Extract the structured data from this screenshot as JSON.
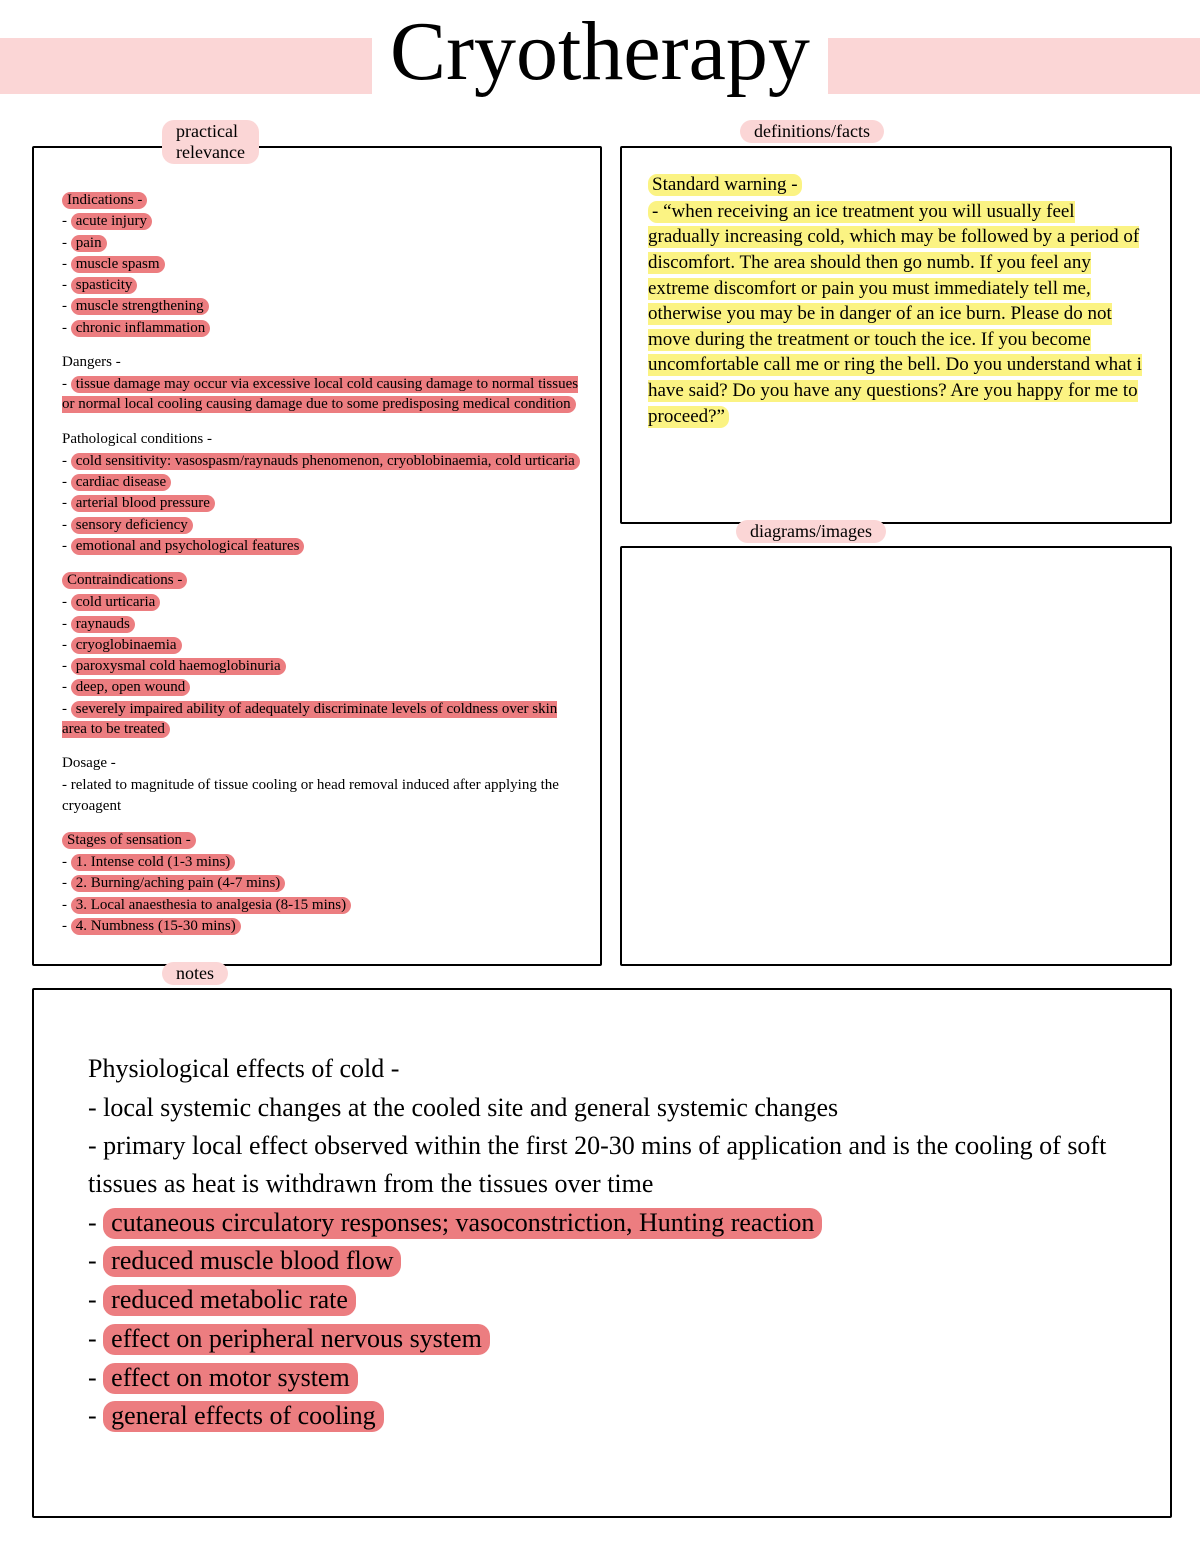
{
  "colors": {
    "pink_band": "#fbd6d6",
    "pink_hl": "#ec7d80",
    "yellow_hl": "#fbf383",
    "border": "#000000",
    "bg": "#ffffff"
  },
  "title": "Cryotherapy",
  "labels": {
    "practical": "practical relevance",
    "defs": "definitions/facts",
    "diagrams": "diagrams/images",
    "notes": "notes"
  },
  "practical": {
    "indications_head": "Indications -",
    "indications": [
      "acute injury",
      "pain",
      "muscle spasm",
      "spasticity",
      "muscle strengthening",
      "chronic inflammation"
    ],
    "dangers_head": "Dangers -",
    "dangers_text": "tissue damage may occur via excessive local cold causing damage to normal tissues or normal local cooling causing damage due to some predisposing medical condition",
    "path_head": "Pathological conditions -",
    "path": [
      "cold sensitivity: vasospasm/raynauds phenomenon, cryoblobinaemia, cold urticaria",
      "cardiac disease",
      "arterial blood pressure",
      "sensory deficiency",
      "emotional and psychological features"
    ],
    "contra_head": "Contraindications -",
    "contra": [
      "cold urticaria",
      "raynauds",
      "cryoglobinaemia",
      "paroxysmal cold haemoglobinuria",
      "deep, open wound",
      "severely impaired ability of adequately discriminate levels of coldness over skin area to be treated"
    ],
    "dosage_head": "Dosage -",
    "dosage_text": "- related to magnitude of tissue cooling or head removal induced after applying the cryoagent",
    "stages_head": "Stages of sensation -",
    "stages": [
      "1. Intense cold (1-3 mins)",
      "2. Burning/aching pain (4-7 mins)",
      "3. Local anaesthesia to analgesia (8-15 mins)",
      "4. Numbness (15-30 mins)"
    ]
  },
  "defs": {
    "head": "Standard warning -",
    "body": "- “when receiving an ice treatment you will usually feel gradually increasing cold, which may be followed by a period of discomfort. The area should then go numb. If you feel any extreme discomfort or pain you must immediately tell me, otherwise you may be in danger of an ice burn. Please do not move during the treatment or touch the ice. If you become uncomfortable call me or ring the bell. Do you understand what i have said? Do you have any questions? Are you happy for me to proceed?”"
  },
  "notes": {
    "head": "Physiological effects of cold -",
    "plain": [
      "- local systemic changes at the cooled site and general systemic changes",
      "- primary local effect observed within the first 20-30 mins of application and is the cooling of soft tissues as heat is withdrawn from the tissues over time"
    ],
    "hl": [
      "cutaneous circulatory responses; vasoconstriction, Hunting reaction",
      "reduced muscle blood flow",
      "reduced metabolic rate",
      "effect on peripheral nervous system",
      "effect on motor system",
      "general effects of cooling"
    ]
  }
}
